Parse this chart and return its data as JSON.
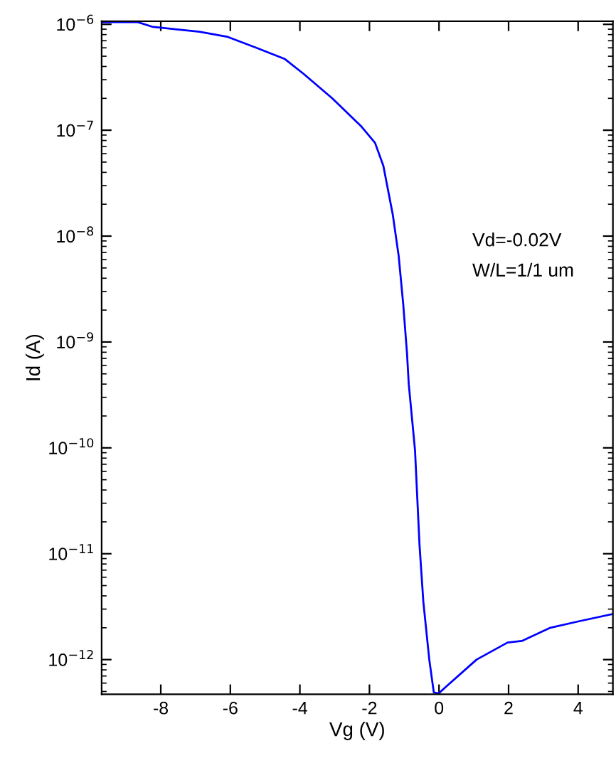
{
  "chart_data": {
    "type": "line",
    "xlabel": "Vg (V)",
    "ylabel": "Id (A)",
    "log": "y",
    "grid": false,
    "legend": false,
    "marker": "none",
    "line_style": "solid",
    "xlim": [
      -9.7,
      5
    ],
    "xticks": [
      -8,
      -6,
      -4,
      -2,
      0,
      2,
      4
    ],
    "ylim": [
      4.7e-13,
      1.07e-06
    ],
    "yticks": [
      {
        "value": 1e-12,
        "label": "10$^{−12}$"
      },
      {
        "value": 1e-11,
        "label": "10$^{−11}$"
      },
      {
        "value": 1e-10,
        "label": "10$^{−10}$"
      },
      {
        "value": 1e-09,
        "label": "10$^{−9}$"
      },
      {
        "value": 1e-08,
        "label": "10$^{−8}$"
      },
      {
        "value": 1e-07,
        "label": "10$^{−7}$"
      },
      {
        "value": 1e-06,
        "label": "10$^{−6}$"
      }
    ],
    "annotations": [
      "Vd=-0.02V",
      "W/L=1/1 um"
    ],
    "series": [
      {
        "color": "#0000ff",
        "x": [
          -9.69,
          -8.66,
          -8.25,
          -6.89,
          -6.07,
          -5.25,
          -4.43,
          -3.89,
          -3.07,
          -2.25,
          -1.84,
          -1.6,
          -1.33,
          -1.16,
          -1.03,
          -0.92,
          -0.87,
          -0.69,
          -0.56,
          -0.45,
          -0.28,
          -0.15,
          -0.01,
          0.19,
          1.08,
          1.97,
          2.38,
          3.2,
          4.02,
          5.0
        ],
        "values": [
          1.05e-06,
          1.05e-06,
          9.5e-07,
          8.5e-07,
          7.6e-07,
          6e-07,
          4.7e-07,
          3.4e-07,
          2e-07,
          1.1e-07,
          7.6e-08,
          4.6e-08,
          1.6e-08,
          6.5e-09,
          2.3e-09,
          7.8e-10,
          4e-10,
          9.5e-11,
          1.2e-11,
          3.5e-12,
          1e-12,
          4.9e-13,
          4.8e-13,
          5.5e-13,
          1e-12,
          1.45e-12,
          1.5e-12,
          2e-12,
          2.3e-12,
          2.7e-12
        ]
      }
    ]
  }
}
